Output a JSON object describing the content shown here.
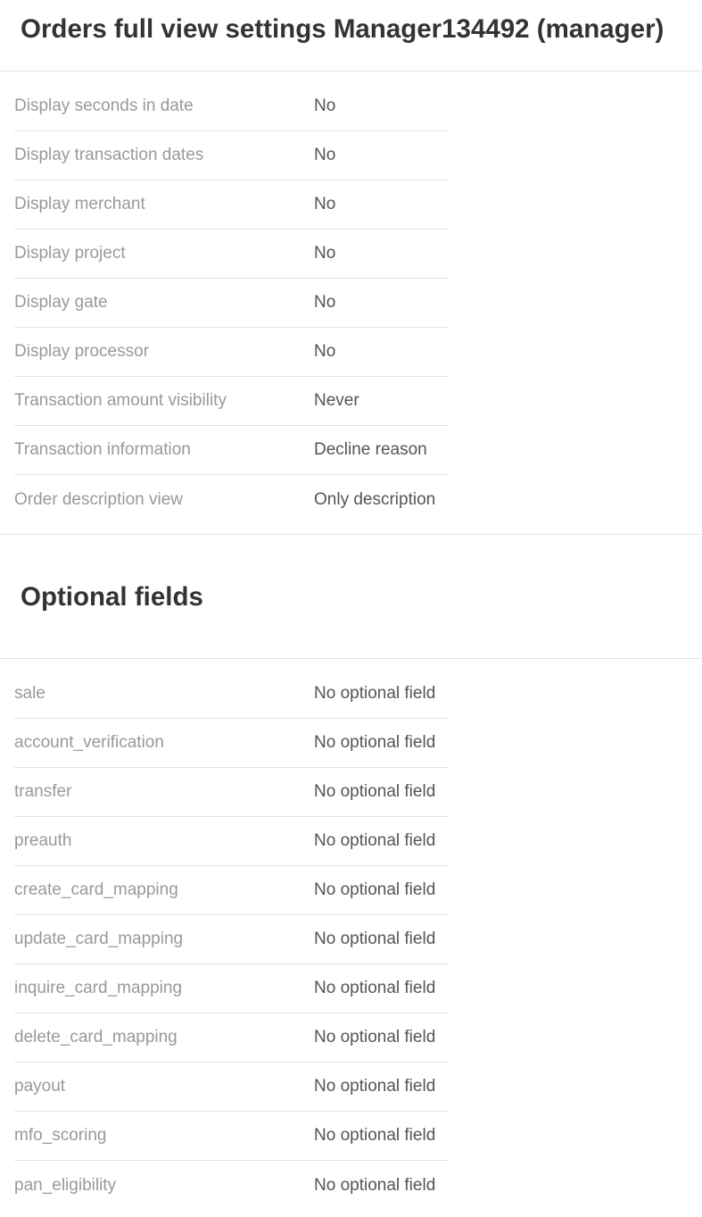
{
  "title": "Orders full view settings Manager134492 (manager)",
  "settings": [
    {
      "label": "Display seconds in date",
      "value": "No"
    },
    {
      "label": "Display transaction dates",
      "value": "No"
    },
    {
      "label": "Display merchant",
      "value": "No"
    },
    {
      "label": "Display project",
      "value": "No"
    },
    {
      "label": "Display gate",
      "value": "No"
    },
    {
      "label": "Display processor",
      "value": "No"
    },
    {
      "label": "Transaction amount visibility",
      "value": "Never"
    },
    {
      "label": "Transaction information",
      "value": "Decline reason"
    },
    {
      "label": "Order description view",
      "value": "Only description"
    }
  ],
  "optional_title": "Optional fields",
  "optional_fields": [
    {
      "label": "sale",
      "value": "No optional field"
    },
    {
      "label": "account_verification",
      "value": "No optional field"
    },
    {
      "label": "transfer",
      "value": "No optional field"
    },
    {
      "label": "preauth",
      "value": "No optional field"
    },
    {
      "label": "create_card_mapping",
      "value": "No optional field"
    },
    {
      "label": "update_card_mapping",
      "value": "No optional field"
    },
    {
      "label": "inquire_card_mapping",
      "value": "No optional field"
    },
    {
      "label": "delete_card_mapping",
      "value": "No optional field"
    },
    {
      "label": "payout",
      "value": "No optional field"
    },
    {
      "label": "mfo_scoring",
      "value": "No optional field"
    },
    {
      "label": "pan_eligibility",
      "value": "No optional field"
    }
  ]
}
